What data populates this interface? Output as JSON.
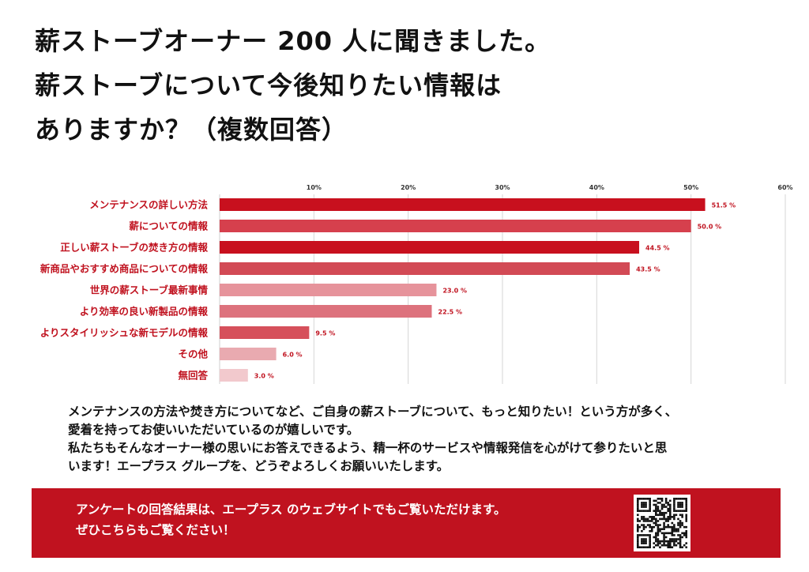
{
  "headline": {
    "line1": "薪ストーブオーナー 200 人に聞きました。",
    "line2": "薪ストーブについて今後知りたい情報は",
    "line3": "ありますか？（複数回答）"
  },
  "chart_data": {
    "type": "bar",
    "orientation": "horizontal",
    "categories": [
      "メンテナンスの詳しい方法",
      "薪についての情報",
      "正しい薪ストーブの焚き方の情報",
      "新商品やおすすめ商品についての情報",
      "世界の薪ストーブ最新事情",
      "より効率の良い新製品の情報",
      "よりスタイリッシュな新モデルの情報",
      "その他",
      "無回答"
    ],
    "values": [
      51.5,
      50.0,
      44.5,
      43.5,
      23.0,
      22.5,
      9.5,
      6.0,
      3.0
    ],
    "value_labels": [
      "51.5 %",
      "50.0 %",
      "44.5 %",
      "43.5 %",
      "23.0 %",
      "22.5 %",
      "9.5 %",
      "6.0 %",
      "3.0 %"
    ],
    "bar_colors": [
      "#c8101e",
      "#d6404d",
      "#c8101e",
      "#d24a55",
      "#e6939b",
      "#dd727d",
      "#d6505b",
      "#e9aab0",
      "#f2c9cd"
    ],
    "label_color": "#c0121f",
    "xlim": [
      0,
      60
    ],
    "xticks": [
      10,
      20,
      30,
      40,
      50,
      60
    ],
    "xtick_labels": [
      "10%",
      "20%",
      "30%",
      "40%",
      "50%",
      "60%"
    ],
    "grid": true
  },
  "note": {
    "line1": "メンテナンスの方法や焚き方についてなど、ご自身の薪ストーブについて、もっと知りたい！という方が多く、",
    "line2": "愛着を持ってお使いいただいているのが嬉しいです。",
    "line3": "私たちもそんなオーナー様の思いにお答えできるよう、精一杯のサービスや情報発信を心がけて参りたいと思",
    "line4": "います！エープラス グループを、どうぞよろしくお願いいたします。"
  },
  "banner": {
    "line1": "アンケートの回答結果は、エープラス のウェブサイトでもご覧いただけます。",
    "line2": "ぜひこちらもご覧ください！",
    "color": "#c0121f"
  }
}
